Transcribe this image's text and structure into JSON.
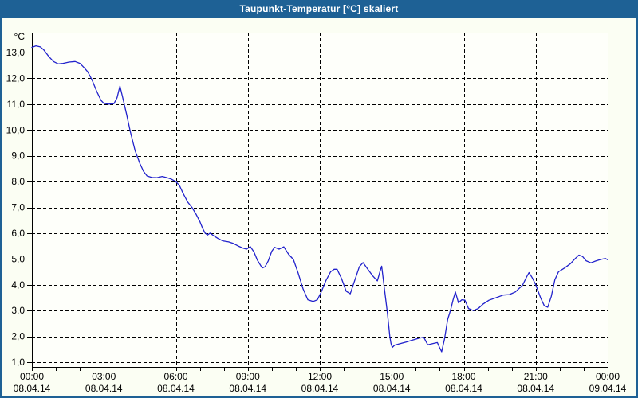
{
  "window": {
    "title": "Taupunkt-Temperatur [°C] skaliert"
  },
  "colors": {
    "titlebar_bg": "#1E6195",
    "titlebar_text": "#FFFFFF",
    "frame_border": "#1E6195",
    "page_bg": "#FBFEF3",
    "plot_bg": "#FEFFFA",
    "grid": "#000000",
    "axis": "#000000",
    "line": "#2222CC",
    "label_text": "#000000"
  },
  "chart_data": {
    "type": "line",
    "title": "Taupunkt-Temperatur [°C] skaliert",
    "unit_label": "°C",
    "xlabel": "",
    "ylabel": "°C",
    "ylim": [
      0.8,
      13.8
    ],
    "xlim_hours": [
      0,
      24
    ],
    "grid": "dashed",
    "legend": "none",
    "y_ticks": [
      {
        "value": 13,
        "label": "13,0"
      },
      {
        "value": 12,
        "label": "12,0"
      },
      {
        "value": 11,
        "label": "11,0"
      },
      {
        "value": 10,
        "label": "10,0"
      },
      {
        "value": 9,
        "label": "9,0"
      },
      {
        "value": 8,
        "label": "8,0"
      },
      {
        "value": 7,
        "label": "7,0"
      },
      {
        "value": 6,
        "label": "6,0"
      },
      {
        "value": 5,
        "label": "5,0"
      },
      {
        "value": 4,
        "label": "4,0"
      },
      {
        "value": 3,
        "label": "3,0"
      },
      {
        "value": 2,
        "label": "2,0"
      },
      {
        "value": 1,
        "label": "1,0"
      }
    ],
    "x_ticks": [
      {
        "hour": 0,
        "time": "00:00",
        "date": "08.04.14"
      },
      {
        "hour": 3,
        "time": "03:00",
        "date": "08.04.14"
      },
      {
        "hour": 6,
        "time": "06:00",
        "date": "08.04.14"
      },
      {
        "hour": 9,
        "time": "09:00",
        "date": "08.04.14"
      },
      {
        "hour": 12,
        "time": "12:00",
        "date": "08.04.14"
      },
      {
        "hour": 15,
        "time": "15:00",
        "date": "08.04.14"
      },
      {
        "hour": 18,
        "time": "18:00",
        "date": "08.04.14"
      },
      {
        "hour": 21,
        "time": "21:00",
        "date": "08.04.14"
      },
      {
        "hour": 24,
        "time": "00:00",
        "date": "09.04.14"
      }
    ],
    "x_minor_tick_every_hours": 1,
    "series": [
      {
        "name": "Taupunkt-Temperatur",
        "color": "#2222CC",
        "points": [
          [
            0,
            13.2
          ],
          [
            0.17,
            13.26
          ],
          [
            0.35,
            13.22
          ],
          [
            0.5,
            13.1
          ],
          [
            0.7,
            12.85
          ],
          [
            0.9,
            12.65
          ],
          [
            1.1,
            12.56
          ],
          [
            1.3,
            12.58
          ],
          [
            1.55,
            12.63
          ],
          [
            1.8,
            12.65
          ],
          [
            2.0,
            12.58
          ],
          [
            2.17,
            12.42
          ],
          [
            2.33,
            12.25
          ],
          [
            2.5,
            11.95
          ],
          [
            2.7,
            11.5
          ],
          [
            2.88,
            11.15
          ],
          [
            3.0,
            11.03
          ],
          [
            3.2,
            11.0
          ],
          [
            3.42,
            11.02
          ],
          [
            3.55,
            11.25
          ],
          [
            3.67,
            11.7
          ],
          [
            3.8,
            11.2
          ],
          [
            3.95,
            10.6
          ],
          [
            4.1,
            9.95
          ],
          [
            4.3,
            9.2
          ],
          [
            4.5,
            8.7
          ],
          [
            4.65,
            8.4
          ],
          [
            4.8,
            8.22
          ],
          [
            5.0,
            8.16
          ],
          [
            5.2,
            8.15
          ],
          [
            5.43,
            8.2
          ],
          [
            5.6,
            8.16
          ],
          [
            5.8,
            8.1
          ],
          [
            6.0,
            8.0
          ],
          [
            6.15,
            7.85
          ],
          [
            6.3,
            7.55
          ],
          [
            6.5,
            7.2
          ],
          [
            6.67,
            7.0
          ],
          [
            6.85,
            6.72
          ],
          [
            7.0,
            6.45
          ],
          [
            7.12,
            6.18
          ],
          [
            7.22,
            6.0
          ],
          [
            7.32,
            5.93
          ],
          [
            7.43,
            6.0
          ],
          [
            7.58,
            5.9
          ],
          [
            7.75,
            5.8
          ],
          [
            7.95,
            5.7
          ],
          [
            8.2,
            5.66
          ],
          [
            8.4,
            5.6
          ],
          [
            8.6,
            5.5
          ],
          [
            8.8,
            5.42
          ],
          [
            8.95,
            5.38
          ],
          [
            9.1,
            5.48
          ],
          [
            9.25,
            5.28
          ],
          [
            9.4,
            4.95
          ],
          [
            9.6,
            4.65
          ],
          [
            9.72,
            4.7
          ],
          [
            9.85,
            4.92
          ],
          [
            10.0,
            5.3
          ],
          [
            10.12,
            5.45
          ],
          [
            10.3,
            5.38
          ],
          [
            10.5,
            5.47
          ],
          [
            10.7,
            5.18
          ],
          [
            10.9,
            4.98
          ],
          [
            11.1,
            4.45
          ],
          [
            11.3,
            3.85
          ],
          [
            11.5,
            3.42
          ],
          [
            11.72,
            3.35
          ],
          [
            11.9,
            3.42
          ],
          [
            12.05,
            3.7
          ],
          [
            12.25,
            4.15
          ],
          [
            12.45,
            4.5
          ],
          [
            12.6,
            4.6
          ],
          [
            12.72,
            4.6
          ],
          [
            12.9,
            4.25
          ],
          [
            13.1,
            3.75
          ],
          [
            13.27,
            3.65
          ],
          [
            13.45,
            4.15
          ],
          [
            13.65,
            4.7
          ],
          [
            13.8,
            4.86
          ],
          [
            14.0,
            4.6
          ],
          [
            14.2,
            4.35
          ],
          [
            14.4,
            4.15
          ],
          [
            14.52,
            4.55
          ],
          [
            14.58,
            4.72
          ],
          [
            14.7,
            3.8
          ],
          [
            14.82,
            2.9
          ],
          [
            14.92,
            2.0
          ],
          [
            14.97,
            1.72
          ],
          [
            15.02,
            1.57
          ],
          [
            15.12,
            1.66
          ],
          [
            15.35,
            1.72
          ],
          [
            15.6,
            1.78
          ],
          [
            15.85,
            1.85
          ],
          [
            16.1,
            1.92
          ],
          [
            16.33,
            1.97
          ],
          [
            16.5,
            1.67
          ],
          [
            16.7,
            1.72
          ],
          [
            16.9,
            1.76
          ],
          [
            17.0,
            1.55
          ],
          [
            17.08,
            1.4
          ],
          [
            17.2,
            1.9
          ],
          [
            17.33,
            2.65
          ],
          [
            17.45,
            3.02
          ],
          [
            17.55,
            3.4
          ],
          [
            17.65,
            3.72
          ],
          [
            17.78,
            3.3
          ],
          [
            17.92,
            3.42
          ],
          [
            18.05,
            3.4
          ],
          [
            18.2,
            3.08
          ],
          [
            18.4,
            3.0
          ],
          [
            18.6,
            3.08
          ],
          [
            18.8,
            3.25
          ],
          [
            19.05,
            3.4
          ],
          [
            19.35,
            3.5
          ],
          [
            19.65,
            3.6
          ],
          [
            19.9,
            3.62
          ],
          [
            20.15,
            3.72
          ],
          [
            20.45,
            3.98
          ],
          [
            20.62,
            4.3
          ],
          [
            20.72,
            4.47
          ],
          [
            20.85,
            4.28
          ],
          [
            21.0,
            4.0
          ],
          [
            21.2,
            3.5
          ],
          [
            21.35,
            3.2
          ],
          [
            21.5,
            3.13
          ],
          [
            21.65,
            3.55
          ],
          [
            21.8,
            4.2
          ],
          [
            21.95,
            4.5
          ],
          [
            22.2,
            4.65
          ],
          [
            22.45,
            4.82
          ],
          [
            22.65,
            5.02
          ],
          [
            22.8,
            5.15
          ],
          [
            22.95,
            5.1
          ],
          [
            23.1,
            4.93
          ],
          [
            23.3,
            4.85
          ],
          [
            23.5,
            4.92
          ],
          [
            23.7,
            4.98
          ],
          [
            23.9,
            5.02
          ],
          [
            24.0,
            4.97
          ]
        ]
      }
    ]
  }
}
